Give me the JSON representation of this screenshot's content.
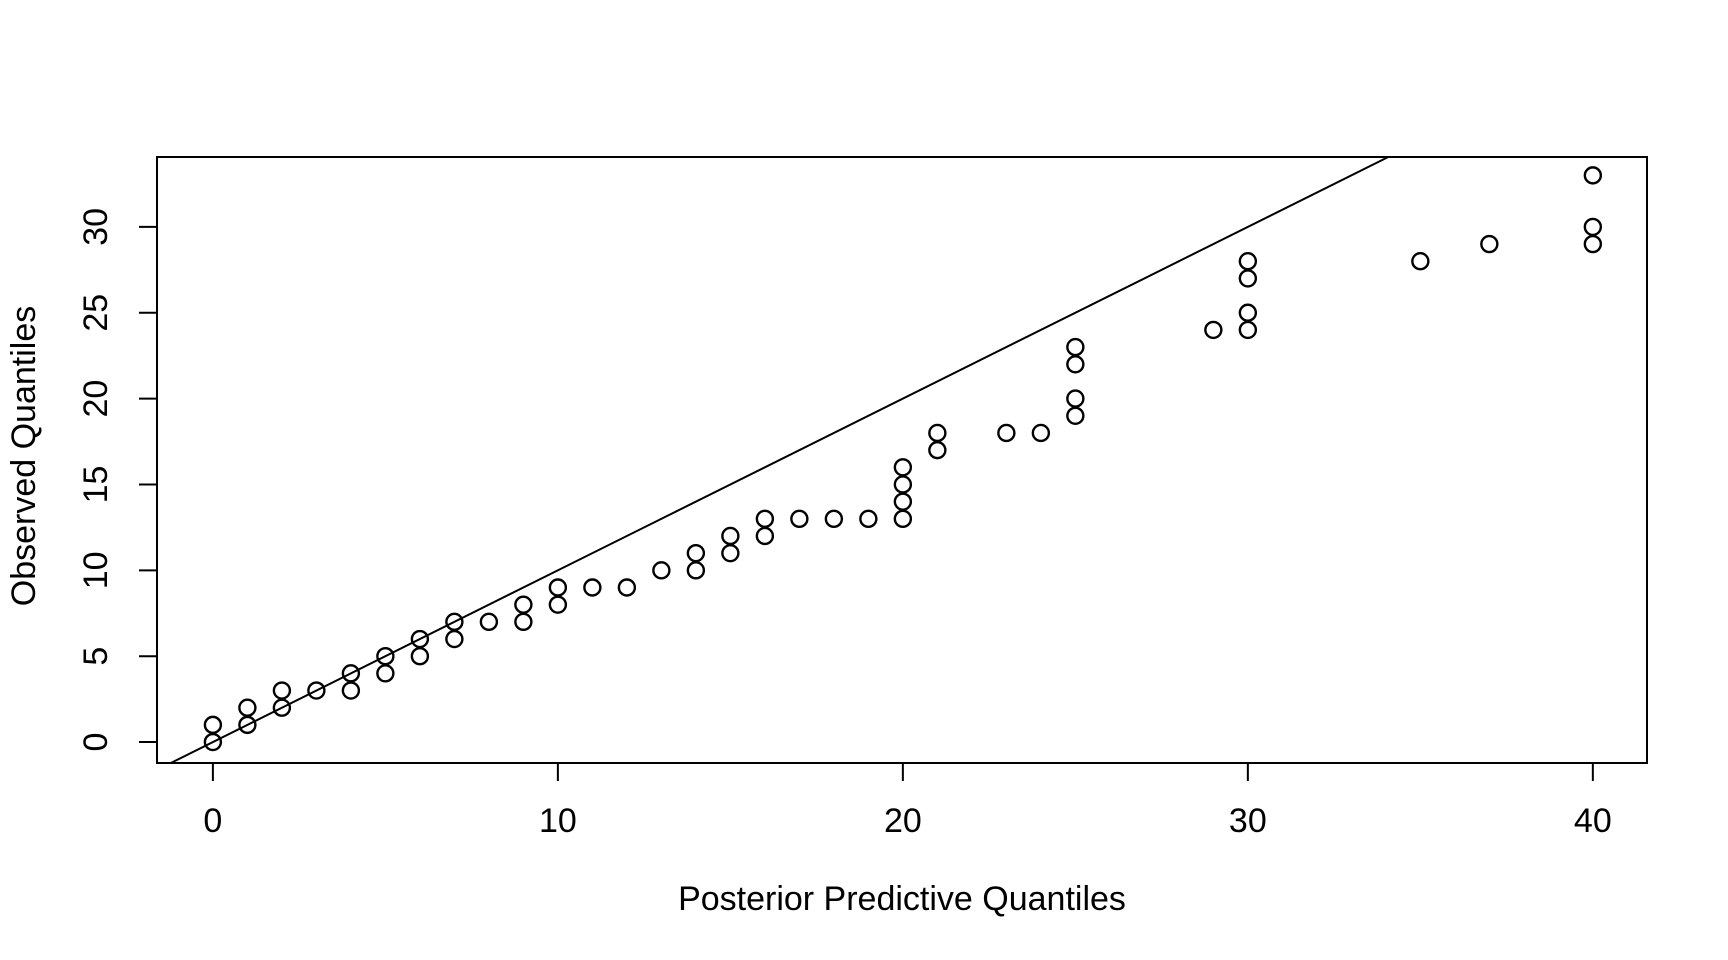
{
  "figure": {
    "background": "#ffffff",
    "foreground": "#000000"
  },
  "chart_data": {
    "type": "scatter",
    "title": "",
    "xlabel": "Posterior Predictive Quantiles",
    "ylabel": "Observed Quantiles",
    "x_ticks": [
      0,
      10,
      20,
      30,
      40
    ],
    "y_ticks": [
      0,
      5,
      10,
      15,
      20,
      25,
      30
    ],
    "xlim": [
      -1.62,
      41.57
    ],
    "ylim": [
      -1.22,
      34.07
    ],
    "grid": false,
    "legend": null,
    "marker": "open-circle",
    "marker_color": "#000000",
    "reference_line": {
      "type": "identity",
      "intercept": 0,
      "slope": 1,
      "color": "#000000"
    },
    "points": [
      [
        0,
        0
      ],
      [
        0,
        1
      ],
      [
        1,
        1
      ],
      [
        1,
        2
      ],
      [
        2,
        2
      ],
      [
        2,
        3
      ],
      [
        3,
        3
      ],
      [
        4,
        3
      ],
      [
        4,
        4
      ],
      [
        5,
        4
      ],
      [
        5,
        5
      ],
      [
        6,
        5
      ],
      [
        6,
        6
      ],
      [
        7,
        6
      ],
      [
        7,
        7
      ],
      [
        8,
        7
      ],
      [
        9,
        7
      ],
      [
        9,
        8
      ],
      [
        10,
        8
      ],
      [
        10,
        9
      ],
      [
        11,
        9
      ],
      [
        12,
        9
      ],
      [
        13,
        10
      ],
      [
        14,
        10
      ],
      [
        14,
        11
      ],
      [
        15,
        11
      ],
      [
        15,
        12
      ],
      [
        16,
        12
      ],
      [
        16,
        13
      ],
      [
        17,
        13
      ],
      [
        18,
        13
      ],
      [
        19,
        13
      ],
      [
        20,
        13
      ],
      [
        20,
        14
      ],
      [
        20,
        15
      ],
      [
        20,
        16
      ],
      [
        21,
        17
      ],
      [
        21,
        18
      ],
      [
        23,
        18
      ],
      [
        24,
        18
      ],
      [
        25,
        19
      ],
      [
        25,
        20
      ],
      [
        25,
        22
      ],
      [
        25,
        23
      ],
      [
        29,
        24
      ],
      [
        30,
        24
      ],
      [
        30,
        25
      ],
      [
        30,
        27
      ],
      [
        30,
        28
      ],
      [
        35,
        28
      ],
      [
        37,
        29
      ],
      [
        40,
        29
      ],
      [
        40,
        30
      ],
      [
        40,
        33
      ]
    ]
  }
}
